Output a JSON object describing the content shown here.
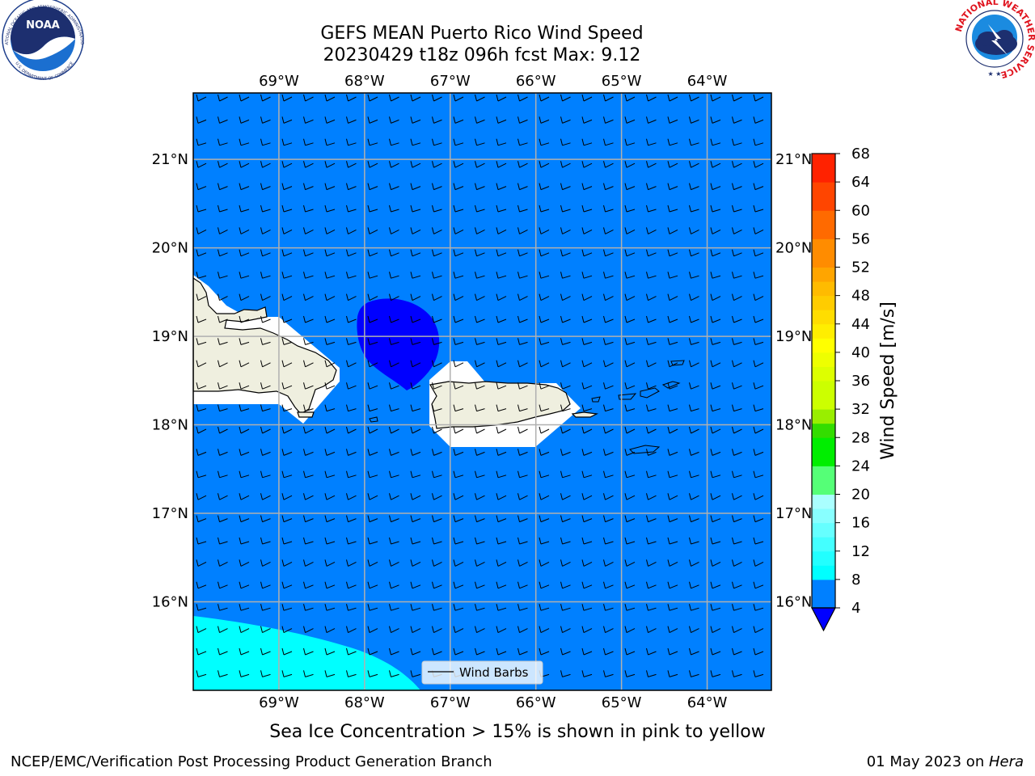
{
  "title_line1": "GEFS MEAN Puerto Rico Wind Speed",
  "title_line2": "20230429 t18z 096h fcst   Max: 9.12",
  "note": "Sea Ice Concentration > 15% is shown in pink to yellow",
  "footer_left": "NCEP/EMC/Verification Post Processing Product Generation Branch",
  "footer_date": "01 May 2023 on ",
  "footer_machine": "Hera",
  "logo_left": "NOAA",
  "logo_left_ring_top": "NATIONAL OCEANIC AND ATMOSPHERIC ADMINISTRATION",
  "logo_left_ring_bottom": "U.S. DEPARTMENT OF COMMERCE",
  "logo_right_ring": "NATIONAL WEATHER SERVICE",
  "legend_label": "Wind Barbs",
  "colors": {
    "ocean": "#0080ff",
    "calm": "#0000ff",
    "swell": "#00ffff",
    "land": "#efefdf"
  },
  "chart_data": {
    "type": "heatmap",
    "title": "GEFS MEAN Puerto Rico Wind Speed",
    "subtitle": "20230429 t18z 096h fcst   Max: 9.12",
    "max_value": 9.12,
    "lon_range": [
      -70.0,
      -63.25
    ],
    "lat_range": [
      15.0,
      21.75
    ],
    "lon_ticks": [
      "69°W",
      "68°W",
      "67°W",
      "66°W",
      "65°W",
      "64°W"
    ],
    "lat_ticks": [
      "21°N",
      "20°N",
      "19°N",
      "18°N",
      "17°N",
      "16°N"
    ],
    "grid": true,
    "colorbar": {
      "label": "Wind Speed [m/s]",
      "ticks": [
        "68",
        "64",
        "60",
        "56",
        "52",
        "48",
        "44",
        "40",
        "36",
        "32",
        "28",
        "24",
        "20",
        "16",
        "12",
        "8",
        "4"
      ],
      "levels": [
        4,
        6,
        8,
        10,
        12,
        14,
        16,
        18,
        20,
        24,
        28,
        30,
        32,
        36,
        38,
        40,
        42,
        44,
        46,
        48,
        50,
        52,
        56,
        60,
        64,
        68
      ],
      "colors": [
        "#0080ff",
        "#0080ff",
        "#00ffff",
        "#22ffff",
        "#44ffff",
        "#66ffff",
        "#88ffff",
        "#aaffff",
        "#55ff77",
        "#00ee00",
        "#33dd00",
        "#99ee00",
        "#ccff00",
        "#ddff00",
        "#eeff00",
        "#ffff00",
        "#ffee00",
        "#ffdd00",
        "#ffcc00",
        "#ffbb00",
        "#ffa500",
        "#ff8c00",
        "#ff6a00",
        "#ff4500",
        "#ff2200",
        "#ff0000"
      ],
      "under_color": "#0000ff"
    },
    "regions": [
      {
        "name": "4-8 m/s",
        "color": "#0080ff"
      },
      {
        "name": "< 4 m/s",
        "color": "#0000ff"
      },
      {
        "name": "8-10 m/s",
        "color": "#00ffff"
      }
    ],
    "legend": "Wind Barbs",
    "legend_placement": "bottom-center"
  }
}
